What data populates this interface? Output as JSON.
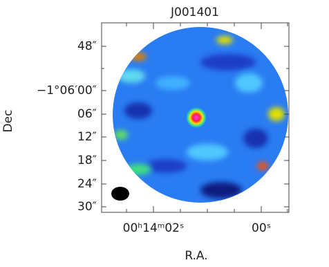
{
  "figure": {
    "title": "J001401",
    "y_label": "Dec",
    "x_label": "R.A.",
    "y_ticks": [
      "48″",
      "−1°06′00″",
      "06″",
      "12″",
      "18″",
      "24″",
      "30″"
    ],
    "x_ticks": [
      "00ʰ14ᵐ02ˢ",
      "00ˢ"
    ]
  }
}
